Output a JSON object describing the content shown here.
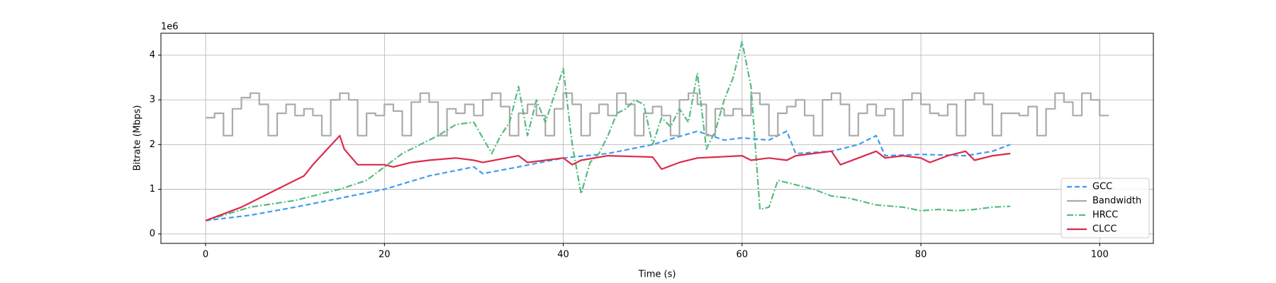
{
  "chart_data": {
    "type": "line",
    "x_label": "Time (s)",
    "y_label": "Bitrate (Mbps)",
    "y_offset_label": "1e6",
    "xlim": [
      -5,
      106
    ],
    "xticks": [
      0,
      20,
      40,
      60,
      80,
      100
    ],
    "ylim": [
      -0.21,
      4.49
    ],
    "yticks": [
      0,
      1,
      2,
      3,
      4
    ],
    "grid": true,
    "legend": "lower right",
    "series": [
      {
        "name": "GCC",
        "color": "#3d9cf0",
        "linestyle": "dashed",
        "x": [
          0,
          5,
          10,
          15,
          20,
          25,
          30,
          31,
          35,
          40,
          45,
          50,
          55,
          58,
          60,
          63,
          65,
          66,
          70,
          73,
          75,
          76,
          80,
          85,
          88,
          90
        ],
        "values": [
          0.3,
          0.42,
          0.6,
          0.8,
          1.0,
          1.3,
          1.5,
          1.35,
          1.5,
          1.7,
          1.8,
          2.0,
          2.3,
          2.1,
          2.15,
          2.1,
          2.3,
          1.8,
          1.85,
          2.0,
          2.2,
          1.75,
          1.78,
          1.75,
          1.85,
          2.0
        ]
      },
      {
        "name": "Bandwidth",
        "color": "#aaaaaa",
        "linestyle": "steps",
        "x": [
          0,
          1,
          2,
          3,
          4,
          5,
          6,
          7,
          8,
          9,
          10,
          11,
          12,
          13,
          14,
          15,
          16,
          17,
          18,
          19,
          20,
          21,
          22,
          23,
          24,
          25,
          26,
          27,
          28,
          29,
          30,
          31,
          32,
          33,
          34,
          35,
          36,
          37,
          38,
          39,
          40,
          41,
          42,
          43,
          44,
          45,
          46,
          47,
          48,
          49,
          50,
          51,
          52,
          53,
          54,
          55,
          56,
          57,
          58,
          59,
          60,
          61,
          62,
          63,
          64,
          65,
          66,
          67,
          68,
          69,
          70,
          71,
          72,
          73,
          74,
          75,
          76,
          77,
          78,
          79,
          80,
          81,
          82,
          83,
          84,
          85,
          86,
          87,
          88,
          89,
          90,
          91,
          92,
          93,
          94,
          95,
          96,
          97,
          98,
          99,
          100,
          101
        ],
        "values": [
          2.6,
          2.7,
          2.2,
          2.8,
          3.05,
          3.15,
          2.9,
          2.2,
          2.7,
          2.9,
          2.65,
          2.8,
          2.65,
          2.2,
          3.0,
          3.15,
          3.0,
          2.2,
          2.7,
          2.65,
          2.9,
          2.75,
          2.2,
          2.95,
          3.15,
          2.95,
          2.2,
          2.8,
          2.7,
          2.9,
          2.65,
          3.0,
          3.15,
          2.85,
          2.2,
          2.7,
          2.9,
          2.65,
          2.2,
          2.8,
          3.15,
          2.9,
          2.2,
          2.7,
          2.9,
          2.65,
          3.15,
          2.9,
          2.2,
          2.7,
          2.85,
          2.65,
          2.2,
          3.0,
          3.15,
          2.9,
          2.2,
          2.8,
          2.65,
          2.8,
          2.65,
          3.15,
          2.9,
          2.2,
          2.7,
          2.85,
          3.0,
          2.65,
          2.2,
          3.0,
          3.15,
          2.9,
          2.2,
          2.7,
          2.9,
          2.65,
          2.8,
          2.2,
          3.0,
          3.15,
          2.9,
          2.7,
          2.65,
          2.9,
          2.2,
          3.0,
          3.15,
          2.9,
          2.2,
          2.7,
          2.7,
          2.65,
          2.85,
          2.2,
          2.8,
          3.15,
          2.95,
          2.65,
          3.15,
          3.0,
          2.65,
          2.65
        ]
      },
      {
        "name": "HRCC",
        "color": "#55bb80",
        "linestyle": "dashdot",
        "x": [
          0,
          5,
          10,
          15,
          18,
          20,
          22,
          24,
          26,
          28,
          30,
          32,
          33,
          34,
          35,
          36,
          37,
          38,
          39,
          40,
          41,
          42,
          43,
          44,
          45,
          46,
          47,
          48,
          49,
          50,
          51,
          52,
          53,
          54,
          55,
          56,
          57,
          58,
          59,
          60,
          61,
          62,
          63,
          64,
          65,
          66,
          68,
          70,
          72,
          75,
          78,
          80,
          82,
          84,
          86,
          88,
          90
        ],
        "values": [
          0.3,
          0.6,
          0.75,
          1.0,
          1.2,
          1.5,
          1.8,
          2.0,
          2.2,
          2.45,
          2.5,
          1.8,
          2.2,
          2.5,
          3.3,
          2.2,
          3.0,
          2.5,
          3.1,
          3.7,
          2.0,
          0.9,
          1.6,
          1.8,
          2.2,
          2.7,
          2.8,
          3.0,
          2.9,
          2.0,
          2.6,
          2.4,
          2.8,
          2.5,
          3.6,
          1.9,
          2.3,
          3.0,
          3.5,
          4.3,
          3.3,
          0.55,
          0.6,
          1.2,
          1.15,
          1.1,
          1.0,
          0.85,
          0.8,
          0.65,
          0.6,
          0.52,
          0.55,
          0.52,
          0.55,
          0.6,
          0.62
        ]
      },
      {
        "name": "CLCC",
        "color": "#dc2a48",
        "linestyle": "solid",
        "x": [
          0,
          4,
          8,
          11,
          12,
          15,
          15.5,
          17,
          20,
          21,
          23,
          25,
          28,
          30,
          31,
          35,
          36,
          40,
          41,
          42,
          45,
          50,
          51,
          53,
          55,
          60,
          61,
          63,
          65,
          66,
          70,
          71,
          73,
          75,
          76,
          78,
          80,
          81,
          83,
          85,
          86,
          88,
          90
        ],
        "values": [
          0.3,
          0.6,
          1.0,
          1.3,
          1.55,
          2.2,
          1.9,
          1.55,
          1.55,
          1.5,
          1.6,
          1.65,
          1.7,
          1.65,
          1.6,
          1.75,
          1.6,
          1.7,
          1.55,
          1.65,
          1.75,
          1.72,
          1.45,
          1.6,
          1.7,
          1.75,
          1.65,
          1.7,
          1.65,
          1.75,
          1.85,
          1.55,
          1.7,
          1.85,
          1.7,
          1.75,
          1.7,
          1.6,
          1.75,
          1.85,
          1.65,
          1.75,
          1.8
        ]
      }
    ]
  }
}
